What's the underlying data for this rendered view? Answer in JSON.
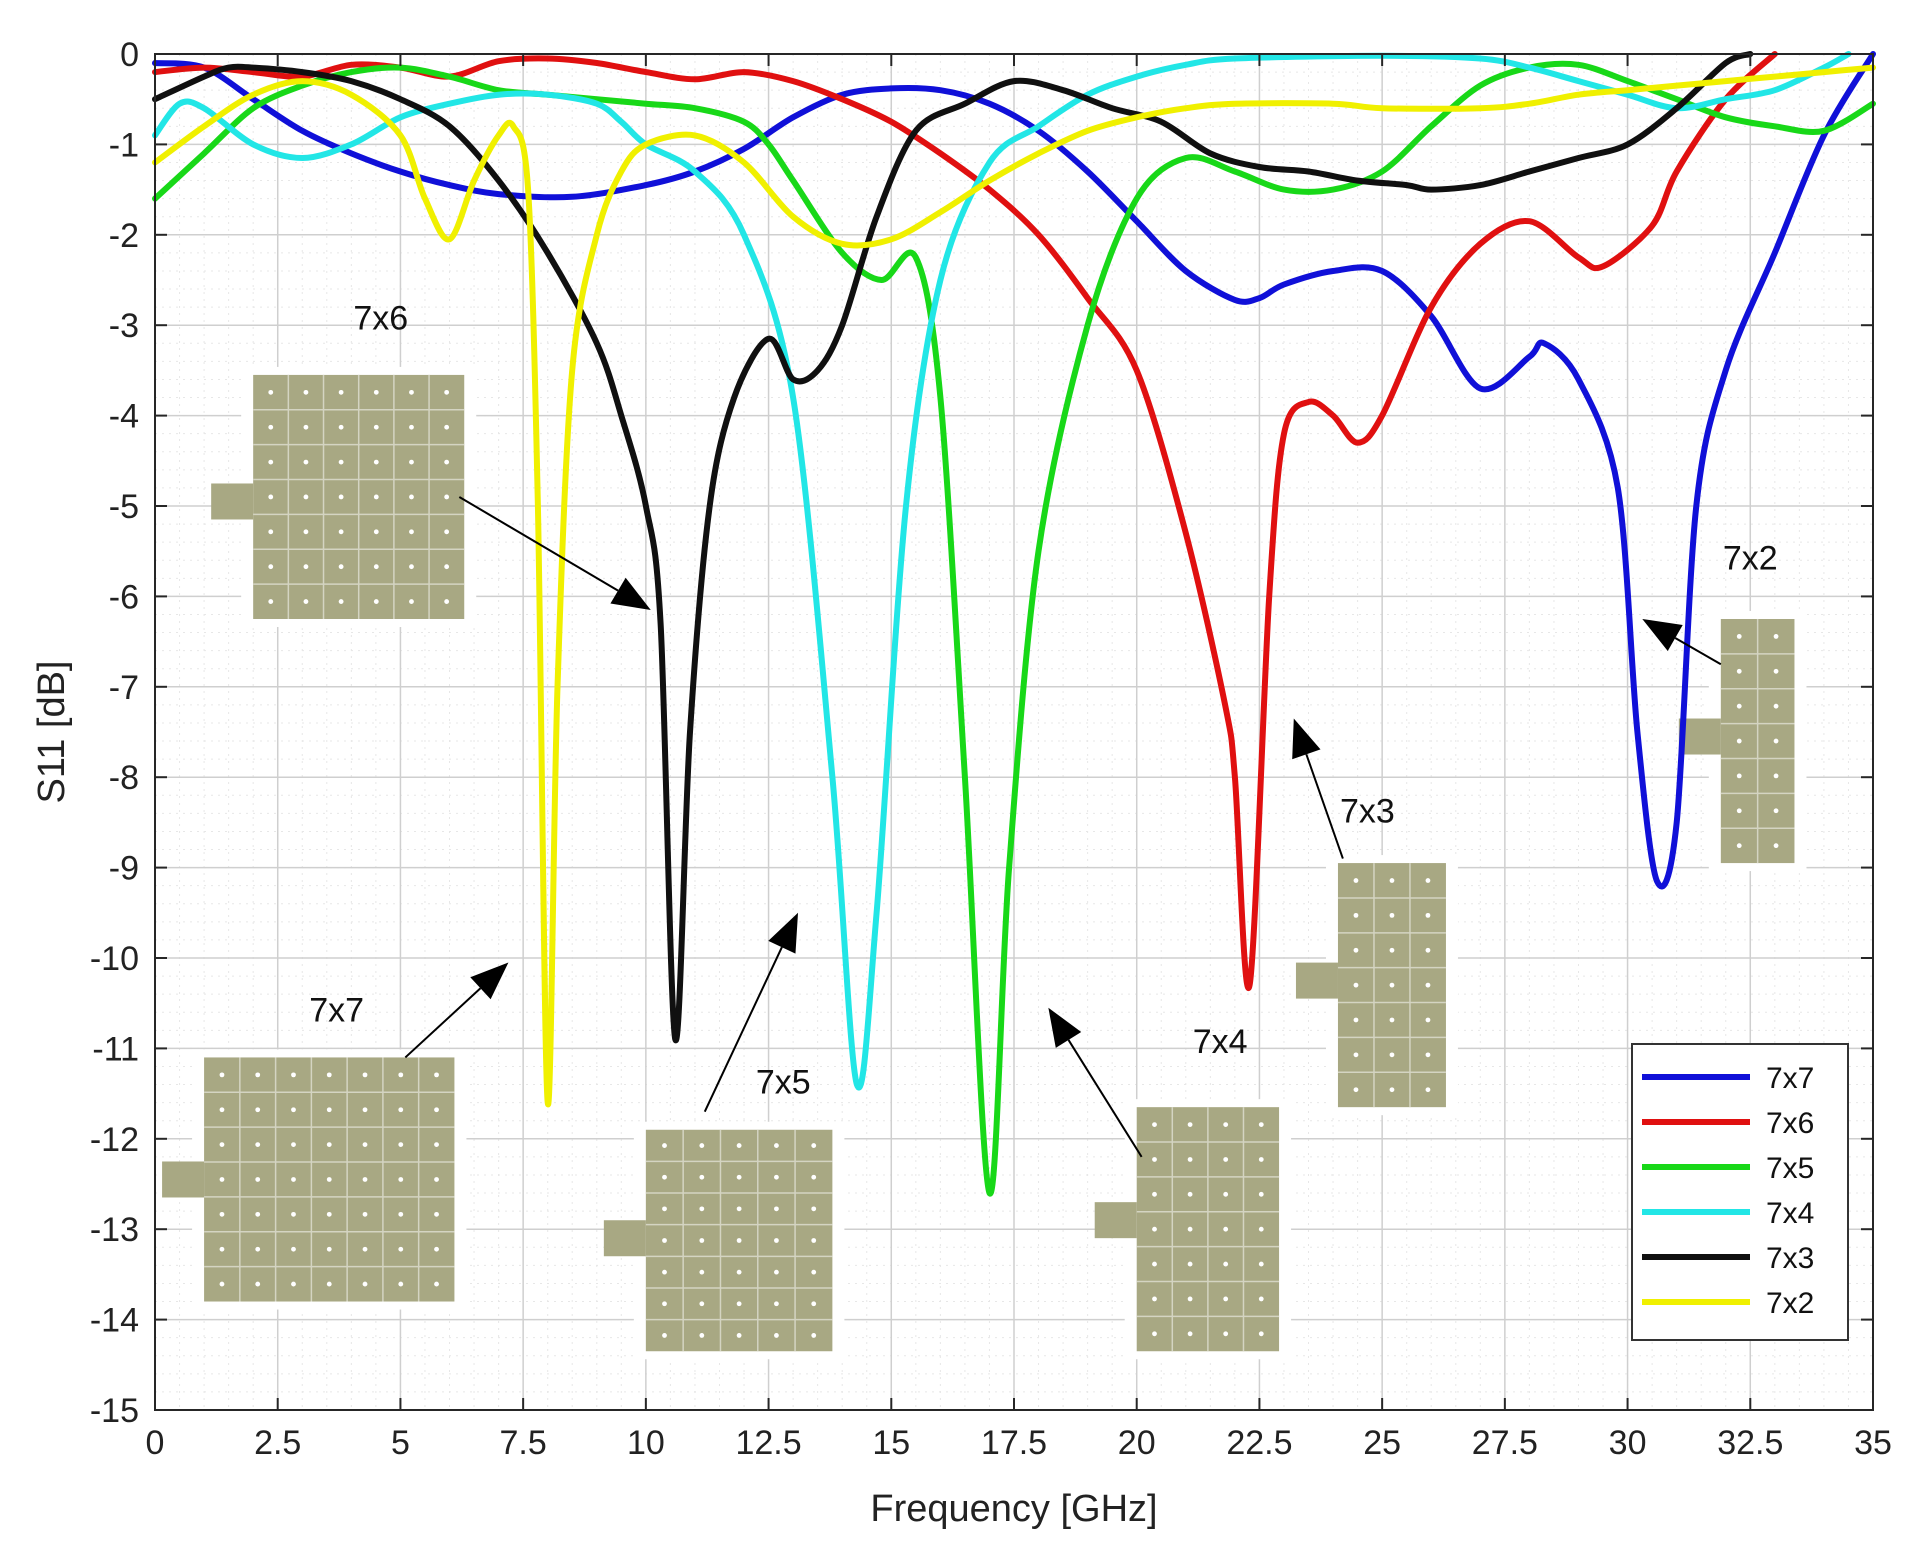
{
  "chart_data": {
    "type": "line",
    "title": "",
    "xlabel": "Frequency [GHz]",
    "ylabel": "S11 [dB]",
    "xlim": [
      0,
      35
    ],
    "ylim": [
      -15,
      0
    ],
    "xticks": [
      "0",
      "2.5",
      "5",
      "7.5",
      "10",
      "12.5",
      "15",
      "17.5",
      "20",
      "22.5",
      "25",
      "27.5",
      "30",
      "32.5",
      "35"
    ],
    "yticks": [
      "0",
      "-1",
      "-2",
      "-3",
      "-4",
      "-5",
      "-6",
      "-7",
      "-8",
      "-9",
      "-10",
      "-11",
      "-12",
      "-13",
      "-14",
      "-15"
    ],
    "grid": true,
    "legend_position": "bottom-right",
    "series": [
      {
        "name": "7x7",
        "color": "#1010d8",
        "points": [
          [
            0,
            -0.1
          ],
          [
            1,
            -0.15
          ],
          [
            2,
            -0.5
          ],
          [
            3,
            -0.85
          ],
          [
            4,
            -1.1
          ],
          [
            5,
            -1.3
          ],
          [
            6,
            -1.45
          ],
          [
            7,
            -1.55
          ],
          [
            8.5,
            -1.58
          ],
          [
            10,
            -1.45
          ],
          [
            11,
            -1.3
          ],
          [
            12,
            -1.05
          ],
          [
            13,
            -0.7
          ],
          [
            14,
            -0.45
          ],
          [
            15,
            -0.38
          ],
          [
            16,
            -0.4
          ],
          [
            17,
            -0.55
          ],
          [
            18,
            -0.85
          ],
          [
            19,
            -1.3
          ],
          [
            20,
            -1.85
          ],
          [
            21,
            -2.4
          ],
          [
            22,
            -2.72
          ],
          [
            22.5,
            -2.7
          ],
          [
            23,
            -2.55
          ],
          [
            24,
            -2.4
          ],
          [
            25,
            -2.4
          ],
          [
            26,
            -2.9
          ],
          [
            27,
            -3.7
          ],
          [
            28,
            -3.35
          ],
          [
            28.3,
            -3.2
          ],
          [
            29,
            -3.6
          ],
          [
            29.8,
            -4.8
          ],
          [
            30.2,
            -7.5
          ],
          [
            30.6,
            -9.15
          ],
          [
            31,
            -8.5
          ],
          [
            31.4,
            -5.0
          ],
          [
            32,
            -3.5
          ],
          [
            33,
            -2.2
          ],
          [
            34,
            -0.9
          ],
          [
            35,
            0
          ]
        ]
      },
      {
        "name": "7x6",
        "color": "#e01010",
        "points": [
          [
            0,
            -0.2
          ],
          [
            1,
            -0.15
          ],
          [
            2,
            -0.2
          ],
          [
            3,
            -0.25
          ],
          [
            4,
            -0.12
          ],
          [
            5,
            -0.15
          ],
          [
            6,
            -0.25
          ],
          [
            7,
            -0.08
          ],
          [
            8,
            -0.05
          ],
          [
            9,
            -0.1
          ],
          [
            10,
            -0.2
          ],
          [
            11,
            -0.28
          ],
          [
            12,
            -0.2
          ],
          [
            13,
            -0.3
          ],
          [
            14,
            -0.5
          ],
          [
            15,
            -0.75
          ],
          [
            16,
            -1.1
          ],
          [
            17,
            -1.5
          ],
          [
            18,
            -2.0
          ],
          [
            19,
            -2.7
          ],
          [
            20,
            -3.5
          ],
          [
            21,
            -5.3
          ],
          [
            21.8,
            -7.2
          ],
          [
            22.0,
            -8.0
          ],
          [
            22.3,
            -10.3
          ],
          [
            22.7,
            -6.0
          ],
          [
            23.0,
            -4.2
          ],
          [
            23.5,
            -3.85
          ],
          [
            24,
            -4.0
          ],
          [
            24.5,
            -4.3
          ],
          [
            25,
            -4.0
          ],
          [
            26,
            -2.8
          ],
          [
            27,
            -2.1
          ],
          [
            28,
            -1.85
          ],
          [
            29,
            -2.25
          ],
          [
            29.5,
            -2.35
          ],
          [
            30.5,
            -1.9
          ],
          [
            31,
            -1.3
          ],
          [
            32,
            -0.5
          ],
          [
            33,
            0
          ]
        ]
      },
      {
        "name": "7x5",
        "color": "#18d818",
        "points": [
          [
            0,
            -1.6
          ],
          [
            1,
            -1.1
          ],
          [
            2,
            -0.6
          ],
          [
            3,
            -0.35
          ],
          [
            4,
            -0.2
          ],
          [
            5,
            -0.15
          ],
          [
            6,
            -0.25
          ],
          [
            7,
            -0.4
          ],
          [
            8,
            -0.45
          ],
          [
            9,
            -0.5
          ],
          [
            10,
            -0.55
          ],
          [
            11,
            -0.6
          ],
          [
            12,
            -0.75
          ],
          [
            12.5,
            -1.0
          ],
          [
            13,
            -1.4
          ],
          [
            14,
            -2.2
          ],
          [
            14.8,
            -2.5
          ],
          [
            15.5,
            -2.25
          ],
          [
            16,
            -3.8
          ],
          [
            16.5,
            -8.0
          ],
          [
            17.0,
            -12.6
          ],
          [
            17.4,
            -9.0
          ],
          [
            18,
            -5.5
          ],
          [
            19,
            -3.0
          ],
          [
            20,
            -1.6
          ],
          [
            21,
            -1.15
          ],
          [
            22,
            -1.3
          ],
          [
            23,
            -1.5
          ],
          [
            24,
            -1.5
          ],
          [
            25,
            -1.3
          ],
          [
            26,
            -0.8
          ],
          [
            27,
            -0.35
          ],
          [
            28,
            -0.15
          ],
          [
            29,
            -0.12
          ],
          [
            30,
            -0.3
          ],
          [
            31,
            -0.5
          ],
          [
            32,
            -0.7
          ],
          [
            33,
            -0.8
          ],
          [
            34,
            -0.85
          ],
          [
            35,
            -0.55
          ]
        ]
      },
      {
        "name": "7x4",
        "color": "#22e6e6",
        "points": [
          [
            0,
            -0.9
          ],
          [
            0.5,
            -0.55
          ],
          [
            1,
            -0.6
          ],
          [
            2,
            -1.0
          ],
          [
            3,
            -1.15
          ],
          [
            4,
            -1.0
          ],
          [
            5,
            -0.7
          ],
          [
            6,
            -0.55
          ],
          [
            7,
            -0.45
          ],
          [
            8,
            -0.45
          ],
          [
            9,
            -0.55
          ],
          [
            9.5,
            -0.75
          ],
          [
            10,
            -1.0
          ],
          [
            11,
            -1.3
          ],
          [
            12,
            -2.0
          ],
          [
            13,
            -3.8
          ],
          [
            13.8,
            -8.0
          ],
          [
            14.3,
            -11.4
          ],
          [
            14.7,
            -9.5
          ],
          [
            15.3,
            -5.0
          ],
          [
            16,
            -2.5
          ],
          [
            17,
            -1.2
          ],
          [
            18,
            -0.8
          ],
          [
            19,
            -0.45
          ],
          [
            20,
            -0.25
          ],
          [
            21,
            -0.12
          ],
          [
            22,
            -0.05
          ],
          [
            25,
            -0.02
          ],
          [
            27,
            -0.05
          ],
          [
            28,
            -0.15
          ],
          [
            29,
            -0.3
          ],
          [
            30,
            -0.45
          ],
          [
            31,
            -0.6
          ],
          [
            32,
            -0.5
          ],
          [
            33,
            -0.4
          ],
          [
            34,
            -0.15
          ],
          [
            34.5,
            0
          ]
        ]
      },
      {
        "name": "7x3",
        "color": "#101010",
        "points": [
          [
            0,
            -0.5
          ],
          [
            1,
            -0.25
          ],
          [
            1.5,
            -0.15
          ],
          [
            2,
            -0.15
          ],
          [
            3,
            -0.2
          ],
          [
            4,
            -0.3
          ],
          [
            5,
            -0.5
          ],
          [
            6,
            -0.8
          ],
          [
            7,
            -1.4
          ],
          [
            8,
            -2.2
          ],
          [
            9,
            -3.2
          ],
          [
            9.5,
            -4.0
          ],
          [
            10,
            -5.0
          ],
          [
            10.3,
            -6.3
          ],
          [
            10.6,
            -10.9
          ],
          [
            10.9,
            -7.5
          ],
          [
            11.3,
            -5.0
          ],
          [
            11.8,
            -3.8
          ],
          [
            12.5,
            -3.15
          ],
          [
            13,
            -3.6
          ],
          [
            13.5,
            -3.5
          ],
          [
            14,
            -3.0
          ],
          [
            14.7,
            -1.8
          ],
          [
            15.5,
            -0.85
          ],
          [
            16.5,
            -0.55
          ],
          [
            17.5,
            -0.3
          ],
          [
            18.5,
            -0.4
          ],
          [
            19.5,
            -0.6
          ],
          [
            20.5,
            -0.75
          ],
          [
            21.5,
            -1.1
          ],
          [
            22.5,
            -1.25
          ],
          [
            23.5,
            -1.3
          ],
          [
            24.5,
            -1.4
          ],
          [
            25.5,
            -1.45
          ],
          [
            26,
            -1.5
          ],
          [
            27,
            -1.45
          ],
          [
            28,
            -1.3
          ],
          [
            29,
            -1.15
          ],
          [
            30,
            -1.0
          ],
          [
            31,
            -0.6
          ],
          [
            32,
            -0.1
          ],
          [
            32.5,
            0
          ]
        ]
      },
      {
        "name": "7x2",
        "color": "#f0f000",
        "points": [
          [
            0,
            -1.2
          ],
          [
            1,
            -0.8
          ],
          [
            2,
            -0.45
          ],
          [
            3,
            -0.3
          ],
          [
            4,
            -0.45
          ],
          [
            5,
            -0.9
          ],
          [
            5.5,
            -1.6
          ],
          [
            6,
            -2.05
          ],
          [
            6.5,
            -1.4
          ],
          [
            7,
            -0.9
          ],
          [
            7.3,
            -0.8
          ],
          [
            7.6,
            -1.5
          ],
          [
            7.8,
            -5.0
          ],
          [
            8.0,
            -11.6
          ],
          [
            8.2,
            -7.0
          ],
          [
            8.5,
            -3.5
          ],
          [
            9,
            -2.0
          ],
          [
            9.5,
            -1.3
          ],
          [
            10,
            -1.0
          ],
          [
            11,
            -0.9
          ],
          [
            12,
            -1.2
          ],
          [
            13,
            -1.8
          ],
          [
            14,
            -2.1
          ],
          [
            15,
            -2.05
          ],
          [
            16,
            -1.75
          ],
          [
            17,
            -1.4
          ],
          [
            18,
            -1.1
          ],
          [
            19,
            -0.85
          ],
          [
            20,
            -0.7
          ],
          [
            21,
            -0.6
          ],
          [
            22,
            -0.55
          ],
          [
            24,
            -0.55
          ],
          [
            25,
            -0.6
          ],
          [
            27,
            -0.6
          ],
          [
            28,
            -0.55
          ],
          [
            29,
            -0.45
          ],
          [
            30,
            -0.4
          ],
          [
            31,
            -0.35
          ],
          [
            32,
            -0.3
          ],
          [
            33,
            -0.25
          ],
          [
            34,
            -0.2
          ],
          [
            35,
            -0.15
          ]
        ]
      }
    ],
    "annotations": [
      {
        "label": "7x6",
        "grid": [
          7,
          6
        ],
        "text_at": [
          4.6,
          -3.05
        ],
        "patch_tl": [
          2.0,
          -3.55
        ],
        "patch_br": [
          6.3,
          -6.25
        ],
        "feed_y": -4.95,
        "arrow_from": [
          6.2,
          -4.9
        ],
        "arrow_to": [
          10.1,
          -6.15
        ]
      },
      {
        "label": "7x7",
        "grid": [
          7,
          7
        ],
        "text_at": [
          3.7,
          -10.7
        ],
        "patch_tl": [
          1.0,
          -11.1
        ],
        "patch_br": [
          6.1,
          -13.8
        ],
        "feed_y": -12.45,
        "arrow_from": [
          5.1,
          -11.1
        ],
        "arrow_to": [
          7.2,
          -10.05
        ]
      },
      {
        "label": "7x5",
        "grid": [
          7,
          5
        ],
        "text_at": [
          12.8,
          -11.5
        ],
        "patch_tl": [
          10.0,
          -11.9
        ],
        "patch_br": [
          13.8,
          -14.35
        ],
        "feed_y": -13.1,
        "arrow_from": [
          11.2,
          -11.7
        ],
        "arrow_to": [
          13.1,
          -9.5
        ]
      },
      {
        "label": "7x4",
        "grid": [
          7,
          4
        ],
        "text_at": [
          21.7,
          -11.05
        ],
        "patch_tl": [
          20.0,
          -11.65
        ],
        "patch_br": [
          22.9,
          -14.35
        ],
        "feed_y": -12.9,
        "arrow_from": [
          20.1,
          -12.2
        ],
        "arrow_to": [
          18.2,
          -10.55
        ]
      },
      {
        "label": "7x3",
        "grid": [
          7,
          3
        ],
        "text_at": [
          24.7,
          -8.5
        ],
        "patch_tl": [
          24.1,
          -8.95
        ],
        "patch_br": [
          26.3,
          -11.65
        ],
        "feed_y": -10.25,
        "arrow_from": [
          24.2,
          -8.9
        ],
        "arrow_to": [
          23.2,
          -7.35
        ]
      },
      {
        "label": "7x2",
        "grid": [
          7,
          2
        ],
        "text_at": [
          32.5,
          -5.7
        ],
        "patch_tl": [
          31.9,
          -6.25
        ],
        "patch_br": [
          33.4,
          -8.95
        ],
        "feed_y": -7.55,
        "arrow_from": [
          31.9,
          -6.75
        ],
        "arrow_to": [
          30.3,
          -6.25
        ]
      }
    ]
  },
  "colors": {
    "axis": "#262626",
    "grid_major": "#cfcfcf",
    "grid_minor": "#e7e7e7",
    "patch_fill": "#a8a883",
    "patch_line": "#d4d4c2",
    "patch_via": "#ffffff"
  }
}
